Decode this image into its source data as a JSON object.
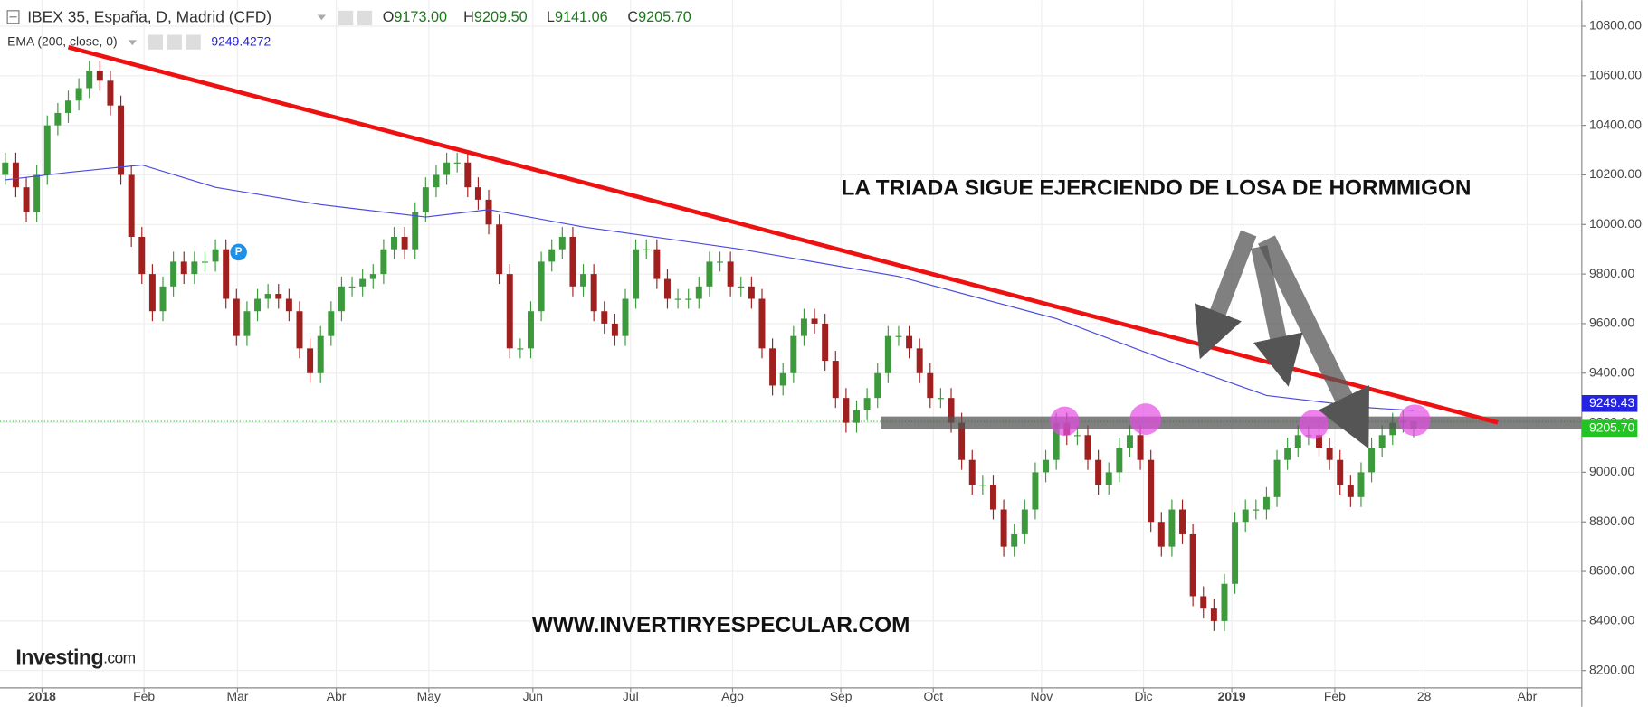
{
  "chart_data": {
    "type": "candlestick",
    "title": "IBEX 35, España, D, Madrid (CFD)",
    "ohlc_legend": [
      {
        "key": "O",
        "value": "9173.00"
      },
      {
        "key": "H",
        "value": "9209.50"
      },
      {
        "key": "L",
        "value": "9141.06"
      },
      {
        "key": "C",
        "value": "9205.70"
      }
    ],
    "up_color": "#3c9a3c",
    "down_color": "#a0201f",
    "open": [
      10200,
      10250,
      10150,
      10050,
      10200,
      10400,
      10450,
      10500,
      10550,
      10620,
      10580,
      10480,
      10200,
      9950,
      9800,
      9650,
      9750,
      9850,
      9800,
      9850,
      9850,
      9900,
      9700,
      9550,
      9650,
      9700,
      9720,
      9700,
      9650,
      9500,
      9400,
      9550,
      9650,
      9750,
      9750,
      9780,
      9800,
      9900,
      9950,
      9900,
      10050,
      10150,
      10200,
      10250,
      10250,
      10150,
      10100,
      10000,
      9800,
      9500,
      9500,
      9650,
      9850,
      9900,
      9950,
      9750,
      9800,
      9650,
      9600,
      9550,
      9700,
      9900,
      9900,
      9780,
      9700,
      9700,
      9700,
      9750,
      9850,
      9850,
      9750,
      9750,
      9700,
      9500,
      9350,
      9400,
      9550,
      9620,
      9600,
      9450,
      9300,
      9200,
      9250,
      9300,
      9400,
      9550,
      9550,
      9500,
      9400,
      9300,
      9300,
      9200,
      9050,
      8950,
      8950,
      8850,
      8700,
      8750,
      8850,
      9000,
      9050,
      9200,
      9150,
      9150,
      9050,
      8950,
      9000,
      9100,
      9150,
      9050,
      8800,
      8700,
      8850,
      8750,
      8500,
      8450,
      8400,
      8550,
      8800,
      8850,
      8850,
      8900,
      9050,
      9100,
      9150,
      9150,
      9100,
      9050,
      8950,
      8900,
      9000,
      9100,
      9150,
      9200,
      9173
    ],
    "high": [
      10290,
      10290,
      10190,
      10240,
      10440,
      10490,
      10540,
      10590,
      10660,
      10660,
      10620,
      10520,
      10240,
      9990,
      9840,
      9790,
      9890,
      9890,
      9890,
      9890,
      9940,
      9940,
      9740,
      9690,
      9740,
      9760,
      9760,
      9740,
      9690,
      9540,
      9590,
      9690,
      9790,
      9790,
      9820,
      9840,
      9940,
      9990,
      9990,
      10090,
      10190,
      10240,
      10290,
      10290,
      10290,
      10190,
      10140,
      10040,
      9840,
      9540,
      9690,
      9890,
      9940,
      9990,
      9990,
      9840,
      9840,
      9690,
      9640,
      9740,
      9940,
      9940,
      9940,
      9820,
      9740,
      9740,
      9790,
      9890,
      9890,
      9890,
      9790,
      9790,
      9740,
      9540,
      9440,
      9590,
      9660,
      9660,
      9640,
      9490,
      9340,
      9290,
      9340,
      9440,
      9590,
      9590,
      9590,
      9540,
      9440,
      9340,
      9340,
      9240,
      9090,
      8990,
      8990,
      8890,
      8790,
      8890,
      9040,
      9090,
      9240,
      9240,
      9190,
      9190,
      9090,
      9040,
      9140,
      9190,
      9190,
      9090,
      8840,
      8890,
      8890,
      8790,
      8540,
      8490,
      8590,
      8840,
      8890,
      8890,
      8940,
      9090,
      9140,
      9190,
      9190,
      9190,
      9140,
      9090,
      8990,
      9040,
      9140,
      9190,
      9240,
      9250,
      9209.5
    ],
    "low": [
      10160,
      10110,
      10010,
      10010,
      10160,
      10360,
      10410,
      10460,
      10510,
      10540,
      10440,
      10160,
      9910,
      9760,
      9610,
      9610,
      9710,
      9760,
      9760,
      9810,
      9810,
      9660,
      9510,
      9510,
      9610,
      9660,
      9660,
      9610,
      9460,
      9360,
      9360,
      9510,
      9610,
      9710,
      9710,
      9740,
      9760,
      9860,
      9860,
      9860,
      10010,
      10110,
      10160,
      10210,
      10110,
      10060,
      9960,
      9760,
      9460,
      9460,
      9460,
      9610,
      9810,
      9860,
      9710,
      9710,
      9610,
      9560,
      9510,
      9510,
      9660,
      9860,
      9740,
      9660,
      9660,
      9660,
      9660,
      9710,
      9810,
      9710,
      9710,
      9660,
      9460,
      9310,
      9310,
      9360,
      9510,
      9560,
      9410,
      9260,
      9160,
      9160,
      9210,
      9260,
      9360,
      9510,
      9460,
      9360,
      9260,
      9260,
      9160,
      9010,
      8910,
      8910,
      8810,
      8660,
      8660,
      8710,
      8810,
      8960,
      9010,
      9110,
      9110,
      9010,
      8910,
      8910,
      8960,
      9060,
      9010,
      8760,
      8660,
      8660,
      8710,
      8460,
      8410,
      8360,
      8360,
      8510,
      8760,
      8810,
      8810,
      8860,
      9010,
      9060,
      9110,
      9060,
      9010,
      8910,
      8860,
      8860,
      8960,
      9060,
      9110,
      9160,
      9141.06
    ],
    "close": [
      10250,
      10150,
      10050,
      10200,
      10400,
      10450,
      10500,
      10550,
      10620,
      10580,
      10480,
      10200,
      9950,
      9800,
      9650,
      9750,
      9850,
      9800,
      9850,
      9850,
      9900,
      9700,
      9550,
      9650,
      9700,
      9720,
      9700,
      9650,
      9500,
      9400,
      9550,
      9650,
      9750,
      9750,
      9780,
      9800,
      9900,
      9950,
      9900,
      10050,
      10150,
      10200,
      10250,
      10250,
      10150,
      10100,
      10000,
      9800,
      9500,
      9500,
      9650,
      9850,
      9900,
      9950,
      9750,
      9800,
      9650,
      9600,
      9550,
      9700,
      9900,
      9900,
      9780,
      9700,
      9700,
      9700,
      9750,
      9850,
      9850,
      9750,
      9750,
      9700,
      9500,
      9350,
      9400,
      9550,
      9620,
      9600,
      9450,
      9300,
      9200,
      9250,
      9300,
      9400,
      9550,
      9550,
      9500,
      9400,
      9300,
      9300,
      9200,
      9050,
      8950,
      8950,
      8850,
      8700,
      8750,
      8850,
      9000,
      9050,
      9200,
      9150,
      9150,
      9050,
      8950,
      9000,
      9100,
      9150,
      9050,
      8800,
      8700,
      8850,
      8750,
      8500,
      8450,
      8400,
      8550,
      8800,
      8850,
      8850,
      8900,
      9050,
      9100,
      9150,
      9150,
      9100,
      9050,
      8950,
      8900,
      9000,
      9100,
      9150,
      9200,
      9210,
      9205.7
    ],
    "ema": {
      "name": "EMA (200, close, 0)",
      "value_label": "9249.4272",
      "color": "#4a4ae0",
      "x": [
        0,
        6,
        13,
        20,
        30,
        40,
        46,
        55,
        70,
        85,
        100,
        110,
        120,
        130,
        134
      ],
      "values": [
        10180,
        10210,
        10240,
        10150,
        10080,
        10030,
        10060,
        9990,
        9900,
        9790,
        9620,
        9460,
        9310,
        9260,
        9249.43
      ]
    },
    "price_tags": [
      {
        "label": "9249.43",
        "color": "#2424e0"
      },
      {
        "label": "9205.70",
        "color": "#21c521"
      }
    ],
    "xlim": [
      -0.5,
      150
    ],
    "ylim": [
      8130,
      10905
    ],
    "xticks": [
      {
        "value": 3.5,
        "label": "2018"
      },
      {
        "value": 13.2,
        "label": "Feb"
      },
      {
        "value": 22.1,
        "label": "Mar"
      },
      {
        "value": 31.5,
        "label": "Abr"
      },
      {
        "value": 40.3,
        "label": "May"
      },
      {
        "value": 50.2,
        "label": "Jun"
      },
      {
        "value": 59.5,
        "label": "Jul"
      },
      {
        "value": 69.2,
        "label": "Ago"
      },
      {
        "value": 79.5,
        "label": "Sep"
      },
      {
        "value": 88.3,
        "label": "Oct"
      },
      {
        "value": 98.6,
        "label": "Nov"
      },
      {
        "value": 108.3,
        "label": "Dic"
      },
      {
        "value": 116.7,
        "label": "2019"
      },
      {
        "value": 126.5,
        "label": "Feb"
      },
      {
        "value": 135,
        "label": "28"
      },
      {
        "value": 144.8,
        "label": "Abr"
      }
    ],
    "yticks": [
      {
        "value": 8200,
        "label": "8200.00"
      },
      {
        "value": 8400,
        "label": "8400.00"
      },
      {
        "value": 8600,
        "label": "8600.00"
      },
      {
        "value": 8800,
        "label": "8800.00"
      },
      {
        "value": 9000,
        "label": "9000.00"
      },
      {
        "value": 9200,
        "label": "9200.00"
      },
      {
        "value": 9400,
        "label": "9400.00"
      },
      {
        "value": 9600,
        "label": "9600.00"
      },
      {
        "value": 9800,
        "label": "9800.00"
      },
      {
        "value": 10000,
        "label": "10000.00"
      },
      {
        "value": 10200,
        "label": "10200.00"
      },
      {
        "value": 10400,
        "label": "10400.00"
      },
      {
        "value": 10600,
        "label": "10600.00"
      },
      {
        "value": 10800,
        "label": "10800.00"
      }
    ],
    "grid": true,
    "trendline": {
      "color": "#ee1111",
      "x": [
        6,
        142
      ],
      "values": [
        10715,
        9201
      ]
    },
    "support_band": {
      "color": "#555555",
      "x": [
        83.3,
        150
      ],
      "value": 9200
    },
    "annotations": [
      "LA TRIADA SIGUE EJERCIENDO DE LOSA DE HORMMIGON",
      "WWW.INVERTIRYESPECULAR.COM"
    ],
    "logo": {
      "brand": "Investing",
      "suffix": ".com"
    }
  }
}
